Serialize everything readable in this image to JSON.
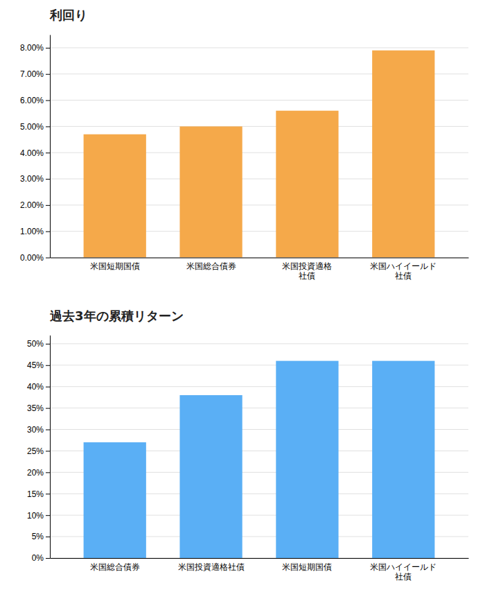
{
  "chart_data": [
    {
      "type": "bar",
      "title": "利回り",
      "categories": [
        "米国短期国債",
        "米国総合債券",
        "米国投資適格\n社債",
        "米国ハイイールド\n社債"
      ],
      "values": [
        4.7,
        5.0,
        5.6,
        7.9
      ],
      "color": "#F5A94A",
      "ylim": [
        0,
        8.5
      ],
      "yticks": [
        {
          "value": 0.0,
          "label": "0.00%"
        },
        {
          "value": 1.0,
          "label": "1.00%"
        },
        {
          "value": 2.0,
          "label": "2.00%"
        },
        {
          "value": 3.0,
          "label": "3.00%"
        },
        {
          "value": 4.0,
          "label": "4.00%"
        },
        {
          "value": 5.0,
          "label": "5.00%"
        },
        {
          "value": 6.0,
          "label": "6.00%"
        },
        {
          "value": 7.0,
          "label": "7.00%"
        },
        {
          "value": 8.0,
          "label": "8.00%"
        }
      ],
      "grid": true
    },
    {
      "type": "bar",
      "title": "過去3年の累積リターン",
      "categories": [
        "米国総合債券",
        "米国投資適格社債",
        "米国短期国債",
        "米国ハイイールド\n社債"
      ],
      "values": [
        27,
        38,
        46,
        46
      ],
      "color": "#5AAFF5",
      "ylim": [
        0,
        52
      ],
      "yticks": [
        {
          "value": 0,
          "label": "0%"
        },
        {
          "value": 5,
          "label": "5%"
        },
        {
          "value": 10,
          "label": "10%"
        },
        {
          "value": 15,
          "label": "15%"
        },
        {
          "value": 20,
          "label": "20%"
        },
        {
          "value": 25,
          "label": "25%"
        },
        {
          "value": 30,
          "label": "30%"
        },
        {
          "value": 35,
          "label": "35%"
        },
        {
          "value": 40,
          "label": "40%"
        },
        {
          "value": 45,
          "label": "45%"
        },
        {
          "value": 50,
          "label": "50%"
        }
      ],
      "grid": true
    }
  ]
}
